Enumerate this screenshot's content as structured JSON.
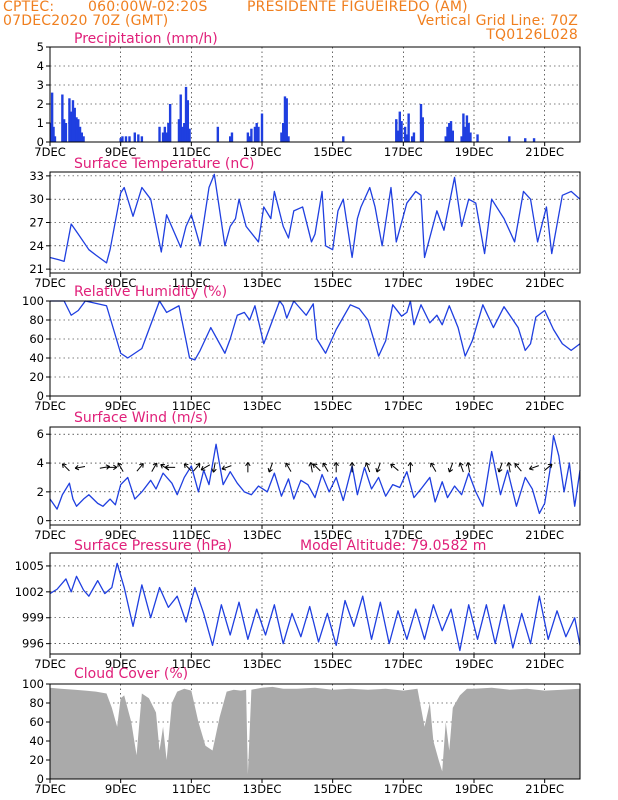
{
  "header": {
    "line1_left": "CPTEC:",
    "line1_coord": "060:00W-02:20S",
    "line1_place": "PRESIDENTE FIGUEIREDO (AM)",
    "line2_left": "07DEC2020 70Z (GMT)",
    "line2_right": "Vertical Grid Line: 70Z",
    "line3_right": "TQ0126L028"
  },
  "x_ticks": [
    "7DEC",
    "9DEC",
    "11DEC",
    "13DEC",
    "15DEC",
    "17DEC",
    "19DEC",
    "21DEC"
  ],
  "x_tick_days": [
    0,
    2,
    4,
    6,
    8,
    10,
    12,
    14
  ],
  "colors": {
    "line": "#1f3fe0",
    "title": "#e0207a",
    "header": "#f07f1f",
    "cloud": "#aaaaaa"
  },
  "chart_data": [
    {
      "id": "precip",
      "type": "bar",
      "title": "Precipitation (mm/h)",
      "ylim": [
        0,
        5
      ],
      "yticks": [
        0,
        1,
        2,
        3,
        4,
        5
      ],
      "x_start": "7DEC",
      "x_end": "22DEC",
      "series": [
        {
          "x": [
            0.02,
            0.06,
            0.1,
            0.14,
            0.35,
            0.4,
            0.45,
            0.55,
            0.6,
            0.65,
            0.7,
            0.75,
            0.8,
            0.85,
            0.9,
            0.95,
            2.0,
            2.05,
            2.15,
            2.25,
            2.4,
            2.5,
            2.6,
            3.1,
            3.2,
            3.25,
            3.3,
            3.35,
            3.4,
            3.65,
            3.7,
            3.75,
            3.8,
            3.85,
            3.9,
            3.95,
            4.75,
            5.1,
            5.15,
            5.6,
            5.65,
            5.7,
            5.8,
            5.85,
            5.9,
            6.0,
            6.55,
            6.6,
            6.65,
            6.7,
            6.75,
            8.3,
            9.8,
            9.85,
            9.9,
            9.95,
            10.05,
            10.1,
            10.15,
            10.25,
            10.3,
            10.5,
            10.55,
            11.2,
            11.25,
            11.3,
            11.35,
            11.4,
            11.65,
            11.7,
            11.75,
            11.8,
            11.85,
            11.9,
            12.1,
            13.0,
            13.45,
            13.7
          ],
          "values": [
            1.0,
            2.6,
            0.8,
            0.3,
            2.5,
            1.2,
            1.0,
            2.3,
            1.6,
            2.2,
            1.8,
            1.3,
            1.2,
            0.8,
            0.5,
            0.3,
            0.2,
            0.3,
            0.3,
            0.3,
            0.5,
            0.4,
            0.3,
            0.8,
            0.5,
            0.8,
            0.5,
            1.0,
            2.0,
            1.2,
            2.5,
            0.8,
            1.0,
            2.9,
            2.2,
            0.7,
            0.8,
            0.3,
            0.5,
            0.5,
            0.3,
            0.7,
            0.8,
            1.0,
            0.8,
            1.5,
            0.5,
            1.0,
            2.4,
            2.3,
            0.3,
            0.3,
            1.2,
            0.6,
            1.6,
            1.1,
            0.8,
            0.4,
            1.5,
            0.3,
            0.5,
            2.0,
            1.3,
            0.3,
            0.8,
            1.0,
            1.1,
            0.6,
            0.3,
            1.5,
            0.8,
            1.4,
            1.0,
            0.5,
            0.4,
            0.3,
            0.2,
            0.2
          ]
        }
      ]
    },
    {
      "id": "temp",
      "type": "line",
      "title": "Surface Temperature (nC)",
      "ylim": [
        20.5,
        33.5
      ],
      "yticks": [
        21,
        24,
        27,
        30,
        33
      ],
      "x_start": "7DEC",
      "x_end": "22DEC",
      "series": [
        {
          "x": [
            0,
            0.25,
            0.4,
            0.6,
            0.8,
            1.1,
            1.3,
            1.6,
            1.7,
            2.0,
            2.1,
            2.35,
            2.6,
            2.85,
            3.15,
            3.3,
            3.7,
            3.85,
            4.0,
            4.25,
            4.5,
            4.65,
            4.95,
            5.1,
            5.25,
            5.35,
            5.55,
            5.9,
            6.05,
            6.25,
            6.35,
            6.6,
            6.75,
            6.9,
            7.15,
            7.4,
            7.5,
            7.7,
            7.8,
            8.0,
            8.15,
            8.3,
            8.55,
            8.7,
            8.8,
            9.05,
            9.2,
            9.4,
            9.65,
            9.8,
            10.1,
            10.35,
            10.5,
            10.6,
            10.95,
            11.15,
            11.45,
            11.65,
            11.85,
            12.05,
            12.3,
            12.5,
            12.85,
            13.15,
            13.4,
            13.6,
            13.8,
            14.05,
            14.2,
            14.5,
            14.75,
            15.0
          ],
          "values": [
            22.5,
            22.2,
            22.0,
            26.8,
            25.5,
            23.5,
            22.8,
            21.8,
            23.5,
            30.8,
            31.5,
            27.8,
            31.5,
            30.0,
            23.2,
            28.0,
            23.8,
            26.5,
            28.0,
            24.0,
            31.5,
            33.2,
            24.0,
            26.5,
            27.5,
            30.0,
            26.5,
            24.5,
            29.0,
            27.5,
            31.0,
            26.5,
            25.0,
            28.5,
            29.0,
            24.5,
            25.5,
            31.0,
            24.0,
            23.5,
            28.5,
            30.0,
            22.5,
            27.5,
            29.0,
            31.5,
            29.0,
            24.0,
            31.5,
            24.5,
            29.5,
            31.0,
            30.5,
            22.5,
            28.5,
            26.0,
            32.8,
            26.5,
            30.0,
            29.5,
            23.0,
            30.0,
            27.5,
            24.5,
            31.0,
            30.0,
            24.5,
            29.0,
            23.0,
            30.5,
            31.0,
            30.0
          ]
        }
      ]
    },
    {
      "id": "rh",
      "type": "line",
      "title": "Relative Humidity (%)",
      "ylim": [
        0,
        100
      ],
      "yticks": [
        0,
        20,
        40,
        60,
        80,
        100
      ],
      "x_start": "7DEC",
      "x_end": "22DEC",
      "series": [
        {
          "x": [
            0,
            0.4,
            0.6,
            0.8,
            1.0,
            1.6,
            2.0,
            2.2,
            2.6,
            3.1,
            3.3,
            3.65,
            3.95,
            4.1,
            4.25,
            4.55,
            4.95,
            5.1,
            5.3,
            5.5,
            5.65,
            5.8,
            6.05,
            6.3,
            6.5,
            6.6,
            6.7,
            6.9,
            7.25,
            7.45,
            7.55,
            7.8,
            8.1,
            8.5,
            8.75,
            9.0,
            9.3,
            9.5,
            9.7,
            9.95,
            10.1,
            10.2,
            10.3,
            10.5,
            10.75,
            10.95,
            11.1,
            11.3,
            11.55,
            11.75,
            11.95,
            12.25,
            12.55,
            12.85,
            13.25,
            13.45,
            13.6,
            13.75,
            14.0,
            14.25,
            14.5,
            14.75,
            15.0
          ],
          "values": [
            100,
            100,
            85,
            90,
            100,
            95,
            45,
            40,
            50,
            100,
            88,
            95,
            40,
            38,
            48,
            72,
            45,
            60,
            85,
            88,
            80,
            95,
            55,
            80,
            100,
            95,
            82,
            100,
            85,
            97,
            60,
            45,
            70,
            96,
            92,
            80,
            42,
            58,
            96,
            84,
            88,
            100,
            75,
            96,
            77,
            85,
            75,
            95,
            72,
            42,
            58,
            96,
            72,
            94,
            72,
            48,
            55,
            83,
            90,
            70,
            55,
            48,
            55
          ]
        }
      ]
    },
    {
      "id": "wind",
      "type": "line",
      "title": "Surface Wind (m/s)",
      "ylim": [
        -0.3,
        6.5
      ],
      "yticks": [
        0,
        2,
        4,
        6
      ],
      "x_start": "7DEC",
      "x_end": "22DEC",
      "series": [
        {
          "x": [
            0,
            0.2,
            0.35,
            0.55,
            0.65,
            0.75,
            0.95,
            1.1,
            1.35,
            1.5,
            1.7,
            1.85,
            2.0,
            2.2,
            2.4,
            2.6,
            2.85,
            3.0,
            3.2,
            3.45,
            3.6,
            3.8,
            4.0,
            4.2,
            4.35,
            4.5,
            4.7,
            4.9,
            5.1,
            5.3,
            5.5,
            5.7,
            5.9,
            6.15,
            6.35,
            6.55,
            6.75,
            6.9,
            7.1,
            7.3,
            7.5,
            7.7,
            7.9,
            8.1,
            8.3,
            8.55,
            8.7,
            8.9,
            9.1,
            9.3,
            9.5,
            9.7,
            9.9,
            10.1,
            10.3,
            10.5,
            10.75,
            10.9,
            11.1,
            11.25,
            11.45,
            11.65,
            11.85,
            12.05,
            12.25,
            12.5,
            12.75,
            12.95,
            13.2,
            13.45,
            13.65,
            13.85,
            14.0,
            14.15,
            14.25,
            14.4,
            14.55,
            14.7,
            14.85,
            15.0
          ],
          "values": [
            1.5,
            0.8,
            1.8,
            2.6,
            1.5,
            1.0,
            1.5,
            1.8,
            1.2,
            1.0,
            1.5,
            1.1,
            2.5,
            3.0,
            1.5,
            2.0,
            2.8,
            2.2,
            3.3,
            2.6,
            1.8,
            3.0,
            3.8,
            2.0,
            3.5,
            2.5,
            5.3,
            2.5,
            3.4,
            2.6,
            2.0,
            1.8,
            2.4,
            2.0,
            3.3,
            1.7,
            2.9,
            1.5,
            2.8,
            2.5,
            1.6,
            3.2,
            2.0,
            3.0,
            1.4,
            3.8,
            1.8,
            3.7,
            2.2,
            3.0,
            1.7,
            2.5,
            2.3,
            3.4,
            1.6,
            2.2,
            3.0,
            1.3,
            2.7,
            1.6,
            2.4,
            1.8,
            3.3,
            2.0,
            1.0,
            4.8,
            1.8,
            3.5,
            1.0,
            3.0,
            2.2,
            0.5,
            1.2,
            3.5,
            5.9,
            4.5,
            2.0,
            4.0,
            1.0,
            3.5
          ]
        }
      ],
      "arrows": [
        {
          "x": 0.45,
          "ang": -135
        },
        {
          "x": 0.85,
          "ang": 170
        },
        {
          "x": 1.55,
          "ang": -10
        },
        {
          "x": 1.75,
          "ang": 0
        },
        {
          "x": 2.0,
          "ang": -120
        },
        {
          "x": 2.55,
          "ang": -50
        },
        {
          "x": 2.95,
          "ang": -60
        },
        {
          "x": 3.25,
          "ang": -145
        },
        {
          "x": 3.4,
          "ang": 180
        },
        {
          "x": 3.9,
          "ang": -135
        },
        {
          "x": 4.15,
          "ang": -50
        },
        {
          "x": 4.4,
          "ang": 150
        },
        {
          "x": 4.65,
          "ang": 100
        },
        {
          "x": 5.0,
          "ang": 160
        },
        {
          "x": 5.6,
          "ang": -90
        },
        {
          "x": 6.25,
          "ang": 110
        },
        {
          "x": 6.75,
          "ang": -120
        },
        {
          "x": 7.4,
          "ang": -100
        },
        {
          "x": 7.55,
          "ang": -135
        },
        {
          "x": 7.8,
          "ang": -120
        },
        {
          "x": 8.1,
          "ang": -90
        },
        {
          "x": 8.55,
          "ang": -90
        },
        {
          "x": 9.0,
          "ang": -110
        },
        {
          "x": 9.3,
          "ang": 110
        },
        {
          "x": 9.75,
          "ang": -140
        },
        {
          "x": 10.2,
          "ang": -90
        },
        {
          "x": 10.85,
          "ang": -120
        },
        {
          "x": 11.35,
          "ang": 110
        },
        {
          "x": 11.65,
          "ang": -110
        },
        {
          "x": 11.85,
          "ang": -100
        },
        {
          "x": 12.75,
          "ang": 110
        },
        {
          "x": 13.0,
          "ang": -100
        },
        {
          "x": 13.25,
          "ang": -130
        },
        {
          "x": 13.7,
          "ang": 160
        },
        {
          "x": 14.1,
          "ang": -40
        }
      ]
    },
    {
      "id": "pres",
      "type": "line",
      "title": "Surface Pressure (hPa)",
      "subtitle": "Model Altitude: 79.0582 m",
      "ylim": [
        994.8,
        1006.5
      ],
      "yticks": [
        996,
        999,
        1002,
        1005
      ],
      "x_start": "7DEC",
      "x_end": "22DEC",
      "series": [
        {
          "x": [
            0,
            0.2,
            0.45,
            0.6,
            0.75,
            0.95,
            1.1,
            1.35,
            1.55,
            1.75,
            1.9,
            2.1,
            2.35,
            2.6,
            2.85,
            3.1,
            3.35,
            3.6,
            3.85,
            4.1,
            4.35,
            4.6,
            4.85,
            5.1,
            5.35,
            5.6,
            5.85,
            6.1,
            6.35,
            6.6,
            6.85,
            7.1,
            7.35,
            7.6,
            7.85,
            8.1,
            8.35,
            8.6,
            8.85,
            9.1,
            9.35,
            9.6,
            9.85,
            10.1,
            10.35,
            10.6,
            10.85,
            11.1,
            11.35,
            11.6,
            11.85,
            12.1,
            12.35,
            12.6,
            12.85,
            13.1,
            13.35,
            13.6,
            13.85,
            14.1,
            14.35,
            14.6,
            14.85,
            15.0
          ],
          "values": [
            1001.8,
            1002.3,
            1003.5,
            1002.0,
            1003.8,
            1002.2,
            1001.5,
            1003.3,
            1001.8,
            1002.5,
            1005.3,
            1002.5,
            998.0,
            1002.8,
            999.0,
            1002.5,
            1000.2,
            1001.5,
            998.5,
            1002.5,
            999.5,
            995.8,
            1000.5,
            997.0,
            1000.8,
            996.5,
            1000.0,
            997.0,
            1000.5,
            996.0,
            999.5,
            996.8,
            1000.3,
            996.2,
            999.5,
            995.8,
            1001.0,
            998.0,
            1001.5,
            996.5,
            1000.8,
            996.0,
            999.8,
            996.5,
            1000.0,
            996.5,
            1000.5,
            997.5,
            1000.0,
            995.2,
            1000.5,
            996.5,
            1000.5,
            996.0,
            1000.5,
            995.5,
            999.5,
            996.0,
            1001.5,
            996.5,
            999.8,
            996.8,
            999.0,
            995.8
          ]
        }
      ]
    },
    {
      "id": "cloud",
      "type": "area",
      "title": "Cloud Cover (%)",
      "ylim": [
        0,
        100
      ],
      "yticks": [
        0,
        20,
        40,
        60,
        80,
        100
      ],
      "x_start": "7DEC",
      "x_end": "22DEC",
      "series": [
        {
          "x": [
            0,
            0.3,
            0.7,
            1.0,
            1.3,
            1.6,
            1.75,
            1.9,
            2.0,
            2.1,
            2.3,
            2.45,
            2.6,
            2.8,
            3.0,
            3.1,
            3.2,
            3.3,
            3.45,
            3.6,
            3.8,
            4.0,
            4.2,
            4.4,
            4.6,
            4.8,
            5.0,
            5.2,
            5.4,
            5.55,
            5.6,
            5.7,
            6.0,
            6.3,
            6.6,
            7.0,
            7.5,
            8.0,
            8.5,
            9.0,
            9.5,
            10.0,
            10.4,
            10.6,
            10.75,
            10.85,
            11.0,
            11.1,
            11.2,
            11.3,
            11.4,
            11.6,
            11.8,
            12.0,
            12.5,
            13.0,
            13.5,
            14.0,
            14.5,
            15.0
          ],
          "values": [
            96,
            95,
            94,
            93,
            92,
            90,
            75,
            55,
            85,
            88,
            60,
            25,
            90,
            85,
            70,
            30,
            55,
            20,
            80,
            92,
            95,
            93,
            60,
            35,
            30,
            65,
            92,
            94,
            93,
            94,
            5,
            94,
            96,
            97,
            95,
            95,
            96,
            94,
            95,
            94,
            95,
            93,
            95,
            55,
            80,
            40,
            20,
            8,
            60,
            30,
            75,
            88,
            95,
            95,
            96,
            94,
            95,
            93,
            94,
            95
          ]
        }
      ]
    }
  ]
}
